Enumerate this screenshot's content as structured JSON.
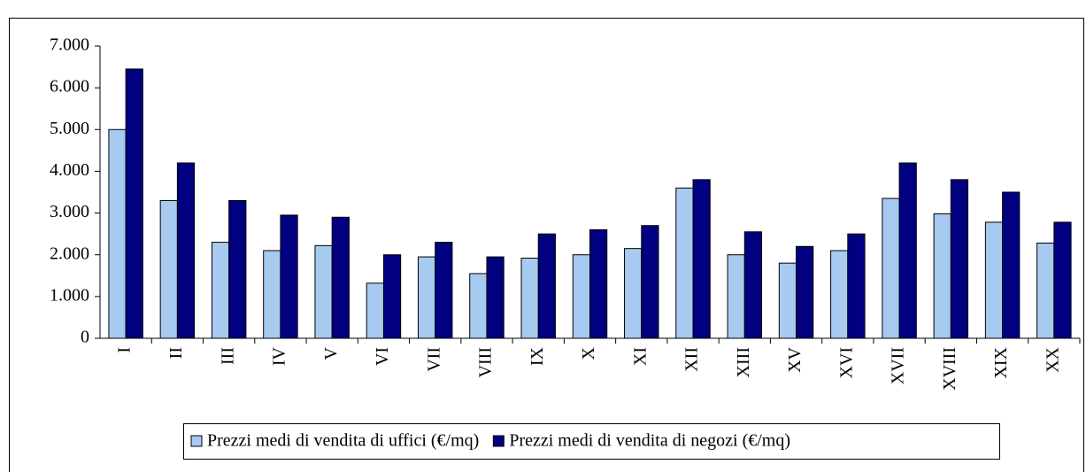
{
  "chart_data": {
    "type": "bar",
    "categories": [
      "I",
      "II",
      "III",
      "IV",
      "V",
      "VI",
      "VII",
      "VIII",
      "IX",
      "X",
      "XI",
      "XII",
      "XIII",
      "XV",
      "XVI",
      "XVII",
      "XVIII",
      "XIX",
      "XX"
    ],
    "series": [
      {
        "name": "Prezzi medi di vendita di uffici (€/mq)",
        "color": "#a6caf0",
        "values": [
          5000,
          3300,
          2300,
          2100,
          2220,
          1320,
          1950,
          1550,
          1920,
          2000,
          2150,
          3600,
          2000,
          1800,
          2100,
          3350,
          2980,
          2780,
          2280
        ]
      },
      {
        "name": "Prezzi medi di vendita di negozi (€/mq)",
        "color": "#000080",
        "values": [
          6450,
          4200,
          3300,
          2950,
          2900,
          2000,
          2300,
          1950,
          2500,
          2600,
          2700,
          3800,
          2550,
          2200,
          2500,
          4200,
          3800,
          3500,
          2780
        ]
      }
    ],
    "ylim": [
      0,
      7000
    ],
    "yticks": [
      0,
      {
        "value": 1000,
        "label": "1.000"
      },
      {
        "value": 2000,
        "label": "2.000"
      },
      {
        "value": 3000,
        "label": "3.000"
      },
      {
        "value": 4000,
        "label": "4.000"
      },
      {
        "value": 5000,
        "label": "5.000"
      },
      {
        "value": 6000,
        "label": "6.000"
      },
      {
        "value": 7000,
        "label": "7.000"
      }
    ],
    "legend": "bottom"
  }
}
